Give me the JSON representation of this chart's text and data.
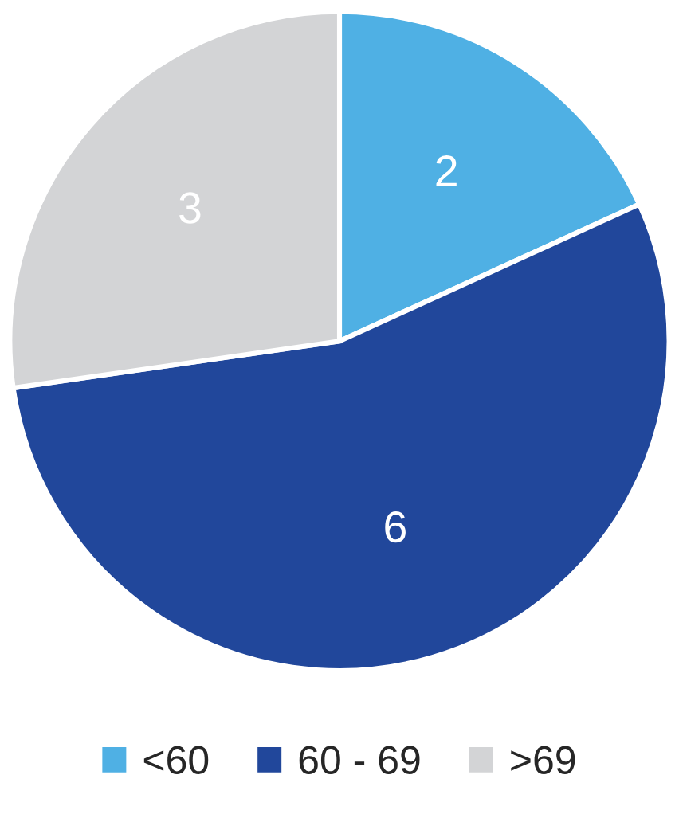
{
  "chart_data": {
    "type": "pie",
    "categories": [
      "<60",
      "60 - 69",
      ">69"
    ],
    "values": [
      2,
      6,
      3
    ],
    "colors": [
      "#4fb0e4",
      "#21479b",
      "#d3d4d6"
    ],
    "data_labels": true,
    "legend": "bottom"
  }
}
